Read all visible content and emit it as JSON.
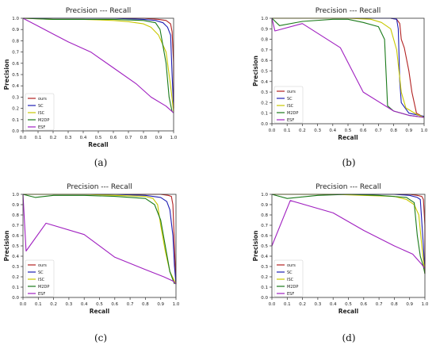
{
  "colors": {
    "ours": "#b22222",
    "SC": "#1f1fb4",
    "ISC": "#c8c800",
    "M2DP": "#1a7a1a",
    "ESF": "#a020c0"
  },
  "chart_data": [
    {
      "type": "line",
      "panel_label": "(a)",
      "title": "Precision --- Recall",
      "xlabel": "Recall",
      "ylabel": "Precision",
      "xlim": [
        0,
        1
      ],
      "ylim": [
        0,
        1
      ],
      "xticks": [
        "0.0",
        "0.1",
        "0.2",
        "0.3",
        "0.4",
        "0.5",
        "0.6",
        "0.7",
        "0.8",
        "0.9",
        "1.0"
      ],
      "yticks": [
        "0.0",
        "0.1",
        "0.2",
        "0.3",
        "0.4",
        "0.5",
        "0.6",
        "0.7",
        "0.8",
        "0.9",
        "1.0"
      ],
      "legend_position": "bottom-left",
      "series": [
        {
          "name": "ours",
          "x": [
            0,
            0.3,
            0.6,
            0.8,
            0.9,
            0.95,
            0.98,
            0.99,
            1.0,
            1.0
          ],
          "y": [
            1,
            1,
            1,
            1,
            0.99,
            0.98,
            0.95,
            0.88,
            0.6,
            0.2
          ]
        },
        {
          "name": "SC",
          "x": [
            0,
            0.3,
            0.6,
            0.8,
            0.88,
            0.93,
            0.96,
            0.98,
            0.99,
            1.0
          ],
          "y": [
            1,
            1,
            1,
            0.99,
            0.98,
            0.96,
            0.92,
            0.85,
            0.5,
            0.2
          ]
        },
        {
          "name": "ISC",
          "x": [
            0,
            0.2,
            0.4,
            0.6,
            0.7,
            0.8,
            0.85,
            0.9,
            0.95,
            0.98,
            1.0
          ],
          "y": [
            1,
            0.99,
            0.99,
            0.98,
            0.97,
            0.95,
            0.92,
            0.85,
            0.7,
            0.4,
            0.17
          ]
        },
        {
          "name": "M2DP",
          "x": [
            0,
            0.2,
            0.4,
            0.6,
            0.8,
            0.88,
            0.91,
            0.93,
            0.95,
            0.97,
            0.99
          ],
          "y": [
            1,
            0.99,
            0.99,
            0.99,
            0.98,
            0.96,
            0.9,
            0.75,
            0.6,
            0.3,
            0.17
          ]
        },
        {
          "name": "ESF",
          "x": [
            0,
            0.1,
            0.2,
            0.3,
            0.45,
            0.6,
            0.75,
            0.85,
            0.95,
            1.0
          ],
          "y": [
            1,
            0.93,
            0.86,
            0.79,
            0.7,
            0.56,
            0.42,
            0.3,
            0.22,
            0.16
          ]
        }
      ]
    },
    {
      "type": "line",
      "panel_label": "(b)",
      "title": "Precision --- Recall",
      "xlabel": "Recall",
      "ylabel": "Precision",
      "xlim": [
        0,
        1
      ],
      "ylim": [
        0,
        1
      ],
      "xticks": [
        "0.0",
        "0.1",
        "0.2",
        "0.3",
        "0.4",
        "0.5",
        "0.6",
        "0.7",
        "0.8",
        "0.9",
        "1.0"
      ],
      "yticks": [
        "0.0",
        "0.1",
        "0.2",
        "0.3",
        "0.4",
        "0.5",
        "0.6",
        "0.7",
        "0.8",
        "0.9",
        "1.0"
      ],
      "legend_position": "bottom-left",
      "series": [
        {
          "name": "ours",
          "x": [
            0,
            0.3,
            0.6,
            0.78,
            0.82,
            0.84,
            0.85,
            0.87,
            0.9,
            0.92,
            0.95,
            1.0
          ],
          "y": [
            1,
            1,
            1,
            1,
            0.99,
            0.95,
            0.8,
            0.72,
            0.5,
            0.3,
            0.1,
            0.06
          ]
        },
        {
          "name": "SC",
          "x": [
            0,
            0.3,
            0.6,
            0.78,
            0.82,
            0.83,
            0.84,
            0.85,
            0.9,
            1.0
          ],
          "y": [
            1,
            1,
            1,
            1,
            0.99,
            0.9,
            0.4,
            0.2,
            0.1,
            0.07
          ]
        },
        {
          "name": "ISC",
          "x": [
            0,
            0.1,
            0.3,
            0.5,
            0.65,
            0.72,
            0.78,
            0.82,
            0.85,
            0.88,
            0.95,
            1.0
          ],
          "y": [
            1,
            1,
            1,
            1,
            0.99,
            0.96,
            0.9,
            0.7,
            0.3,
            0.15,
            0.09,
            0.06
          ]
        },
        {
          "name": "M2DP",
          "x": [
            0,
            0.05,
            0.2,
            0.4,
            0.5,
            0.6,
            0.7,
            0.74,
            0.76,
            0.8,
            0.9,
            1.0
          ],
          "y": [
            1,
            0.93,
            0.97,
            0.99,
            0.99,
            0.96,
            0.92,
            0.8,
            0.17,
            0.12,
            0.08,
            0.06
          ]
        },
        {
          "name": "ESF",
          "x": [
            0,
            0.02,
            0.2,
            0.45,
            0.6,
            0.8,
            0.9,
            1.0
          ],
          "y": [
            1,
            0.88,
            0.95,
            0.72,
            0.3,
            0.12,
            0.08,
            0.06
          ]
        }
      ]
    },
    {
      "type": "line",
      "panel_label": "(c)",
      "title": "Precision --- Recall",
      "xlabel": "Recall",
      "ylabel": "Precision",
      "xlim": [
        0,
        1
      ],
      "ylim": [
        0,
        1
      ],
      "xticks": [
        "0.0",
        "0.1",
        "0.2",
        "0.3",
        "0.4",
        "0.5",
        "0.6",
        "0.7",
        "0.8",
        "0.9",
        "1.0"
      ],
      "yticks": [
        "0.0",
        "0.1",
        "0.2",
        "0.3",
        "0.4",
        "0.5",
        "0.6",
        "0.7",
        "0.8",
        "0.9",
        "1.0"
      ],
      "legend_position": "bottom-left",
      "series": [
        {
          "name": "ours",
          "x": [
            0,
            0.3,
            0.6,
            0.8,
            0.9,
            0.95,
            0.97,
            0.98,
            0.99,
            1.0
          ],
          "y": [
            1,
            1,
            1,
            1,
            1,
            0.99,
            0.98,
            0.9,
            0.5,
            0.13
          ]
        },
        {
          "name": "SC",
          "x": [
            0,
            0.3,
            0.6,
            0.8,
            0.9,
            0.94,
            0.96,
            0.98,
            0.99,
            1.0
          ],
          "y": [
            1,
            1,
            1,
            0.99,
            0.97,
            0.93,
            0.85,
            0.6,
            0.3,
            0.13
          ]
        },
        {
          "name": "ISC",
          "x": [
            0,
            0.2,
            0.4,
            0.6,
            0.8,
            0.85,
            0.88,
            0.9,
            0.93,
            0.96,
            1.0
          ],
          "y": [
            1,
            1,
            1,
            0.99,
            0.98,
            0.96,
            0.9,
            0.7,
            0.45,
            0.25,
            0.13
          ]
        },
        {
          "name": "M2DP",
          "x": [
            0,
            0.08,
            0.2,
            0.4,
            0.6,
            0.8,
            0.86,
            0.9,
            0.93,
            0.96,
            0.99
          ],
          "y": [
            1,
            0.97,
            0.99,
            0.99,
            0.98,
            0.96,
            0.9,
            0.75,
            0.5,
            0.25,
            0.13
          ]
        },
        {
          "name": "ESF",
          "x": [
            0,
            0.02,
            0.15,
            0.4,
            0.6,
            0.8,
            0.92,
            0.98,
            1.0
          ],
          "y": [
            1,
            0.45,
            0.72,
            0.61,
            0.39,
            0.27,
            0.2,
            0.16,
            0.13
          ]
        }
      ]
    },
    {
      "type": "line",
      "panel_label": "(d)",
      "title": "Precision --- Recall",
      "xlabel": "Recall",
      "ylabel": "Precision",
      "xlim": [
        0,
        1
      ],
      "ylim": [
        0,
        1
      ],
      "xticks": [
        "0.0",
        "0.1",
        "0.2",
        "0.3",
        "0.4",
        "0.5",
        "0.6",
        "0.7",
        "0.8",
        "0.9",
        "1.0"
      ],
      "yticks": [
        "0.0",
        "0.1",
        "0.2",
        "0.3",
        "0.4",
        "0.5",
        "0.6",
        "0.7",
        "0.8",
        "0.9",
        "1.0"
      ],
      "legend_position": "bottom-left",
      "series": [
        {
          "name": "ours",
          "x": [
            0,
            0.3,
            0.6,
            0.8,
            0.9,
            0.95,
            0.98,
            0.99,
            1.0,
            1.0
          ],
          "y": [
            1,
            1,
            1,
            1,
            1,
            0.99,
            0.98,
            0.95,
            0.7,
            0.23
          ]
        },
        {
          "name": "SC",
          "x": [
            0,
            0.3,
            0.6,
            0.8,
            0.9,
            0.95,
            0.97,
            0.99,
            1.0
          ],
          "y": [
            1,
            1,
            1,
            1,
            0.99,
            0.97,
            0.95,
            0.5,
            0.23
          ]
        },
        {
          "name": "ISC",
          "x": [
            0,
            0.2,
            0.4,
            0.6,
            0.8,
            0.88,
            0.93,
            0.96,
            0.98,
            1.0
          ],
          "y": [
            1,
            1,
            1,
            0.99,
            0.98,
            0.95,
            0.9,
            0.8,
            0.5,
            0.23
          ]
        },
        {
          "name": "M2DP",
          "x": [
            0,
            0.1,
            0.3,
            0.5,
            0.7,
            0.88,
            0.93,
            0.95,
            0.97,
            0.99,
            1.0
          ],
          "y": [
            1,
            0.96,
            0.99,
            1,
            0.99,
            0.97,
            0.92,
            0.6,
            0.4,
            0.3,
            0.23
          ]
        },
        {
          "name": "ESF",
          "x": [
            0,
            0.12,
            0.4,
            0.6,
            0.8,
            0.92,
            0.98,
            1.0
          ],
          "y": [
            0.5,
            0.94,
            0.82,
            0.65,
            0.5,
            0.42,
            0.32,
            0.28
          ]
        }
      ]
    }
  ]
}
